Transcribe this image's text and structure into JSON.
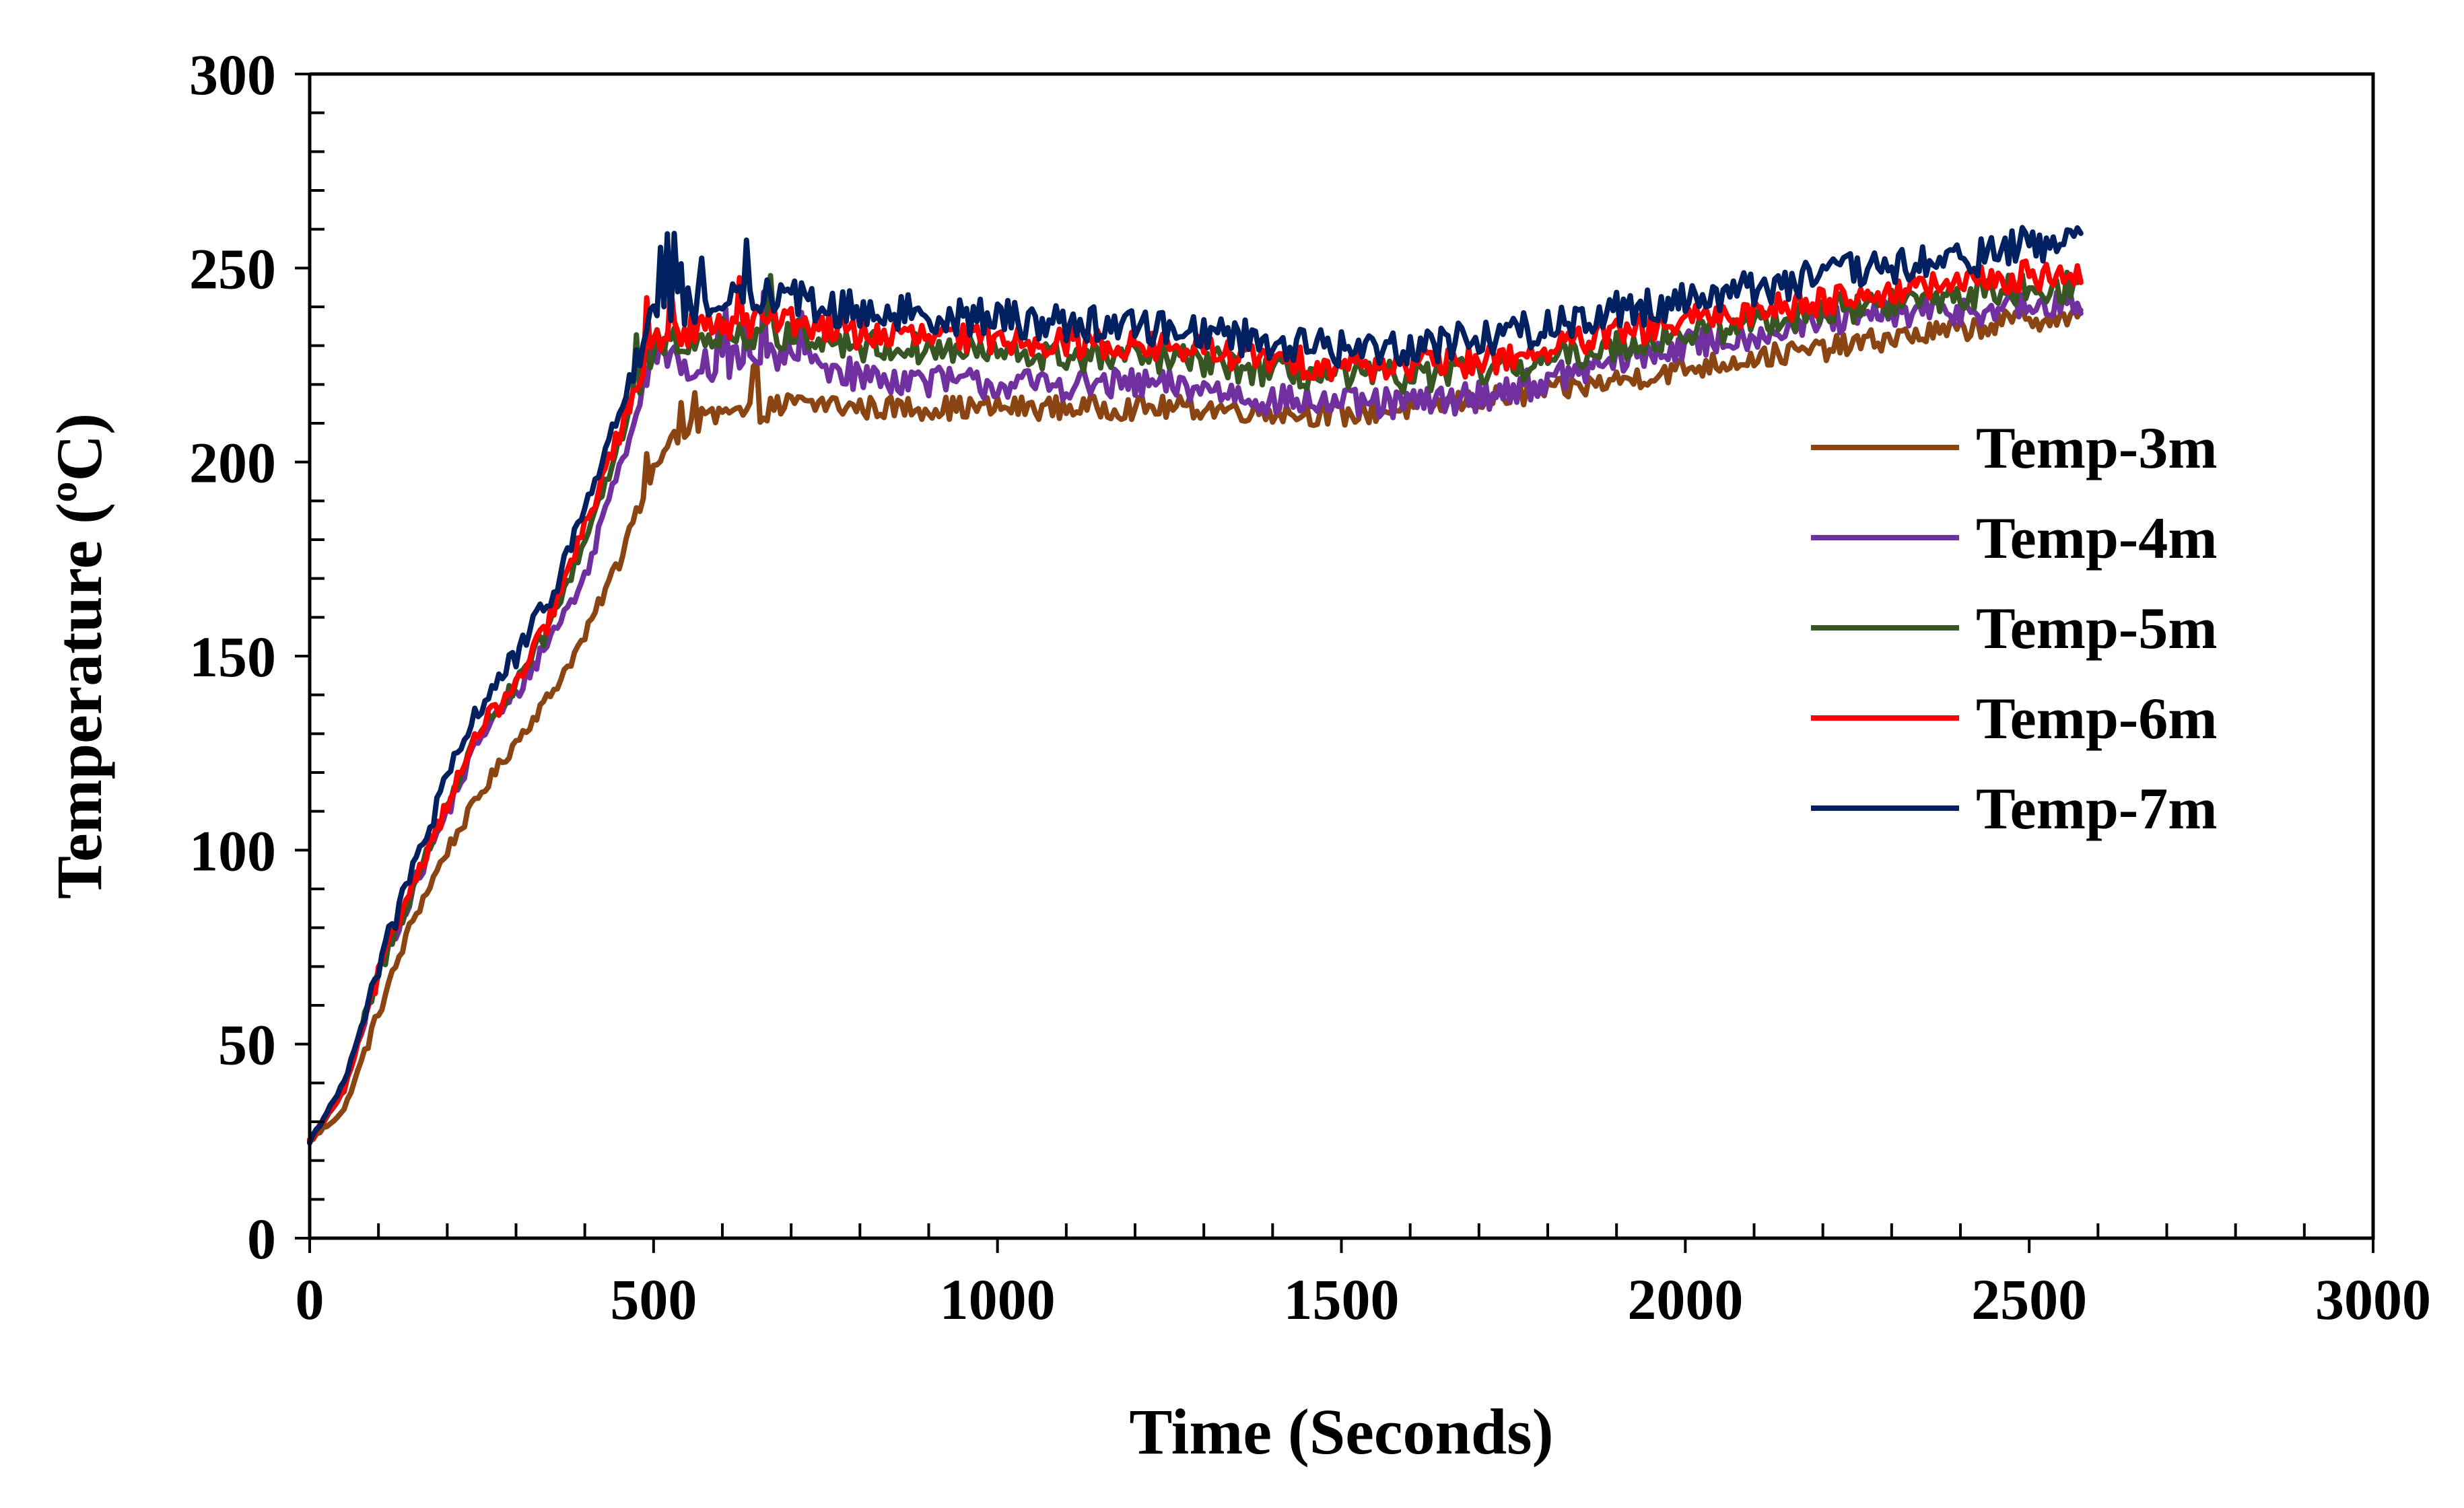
{
  "chart_data": {
    "type": "line",
    "title": "",
    "xlabel": "Time (Seconds)",
    "ylabel": "Temperature (ºC)",
    "xlim": [
      0,
      3000
    ],
    "ylim": [
      0,
      300
    ],
    "x_ticks": [
      "0",
      "500",
      "1000",
      "1500",
      "2000",
      "2500",
      "3000"
    ],
    "y_ticks": [
      "0",
      "50",
      "100",
      "150",
      "200",
      "250",
      "300"
    ],
    "x_tick_values": [
      0,
      500,
      1000,
      1500,
      2000,
      2500,
      3000
    ],
    "y_tick_values": [
      0,
      50,
      100,
      150,
      200,
      250,
      300
    ],
    "grid": false,
    "legend_position": "right",
    "x": [
      0,
      50,
      100,
      150,
      200,
      250,
      300,
      350,
      400,
      450,
      500,
      550,
      600,
      650,
      700,
      750,
      800,
      900,
      1000,
      1100,
      1200,
      1300,
      1400,
      1500,
      1600,
      1700,
      1800,
      1900,
      2000,
      2100,
      2200,
      2300,
      2400,
      2500,
      2575
    ],
    "series": [
      {
        "name": "Temp-3m",
        "color": "#8B4513",
        "noise": 3,
        "values": [
          25,
          33,
          58,
          82,
          100,
          115,
          128,
          140,
          155,
          175,
          198,
          210,
          212,
          213,
          215,
          215,
          214,
          214,
          214,
          214,
          214,
          214,
          213,
          212,
          214,
          216,
          218,
          221,
          224,
          227,
          229,
          232,
          234,
          237,
          237
        ]
      },
      {
        "name": "Temp-4m",
        "color": "#7030A0",
        "noise": 4,
        "values": [
          25,
          38,
          68,
          90,
          110,
          130,
          140,
          155,
          170,
          200,
          228,
          225,
          225,
          227,
          228,
          225,
          222,
          221,
          220,
          220,
          220,
          219,
          216,
          215,
          215,
          217,
          221,
          226,
          230,
          233,
          236,
          238,
          239,
          240,
          240
        ]
      },
      {
        "name": "Temp-5m",
        "color": "#375623",
        "noise": 4,
        "values": [
          25,
          38,
          68,
          90,
          112,
          132,
          142,
          158,
          180,
          205,
          230,
          232,
          233,
          233,
          233,
          232,
          230,
          229,
          228,
          227,
          227,
          226,
          223,
          222,
          222,
          223,
          226,
          230,
          233,
          236,
          239,
          241,
          243,
          245,
          245
        ]
      },
      {
        "name": "Temp-6m",
        "color": "#FF0000",
        "noise": 4,
        "values": [
          25,
          38,
          68,
          92,
          112,
          132,
          142,
          160,
          183,
          208,
          232,
          234,
          236,
          236,
          236,
          235,
          233,
          232,
          232,
          231,
          230,
          229,
          226,
          225,
          225,
          226,
          229,
          233,
          236,
          239,
          242,
          244,
          246,
          248,
          249
        ]
      },
      {
        "name": "Temp-7m",
        "color": "#002060",
        "noise": 5,
        "values": [
          25,
          40,
          70,
          95,
          118,
          138,
          150,
          165,
          188,
          213,
          238,
          240,
          241,
          242,
          242,
          240,
          239,
          238,
          237,
          236,
          235,
          234,
          231,
          229,
          230,
          232,
          235,
          239,
          242,
          245,
          248,
          250,
          252,
          256,
          258
        ]
      }
    ]
  }
}
